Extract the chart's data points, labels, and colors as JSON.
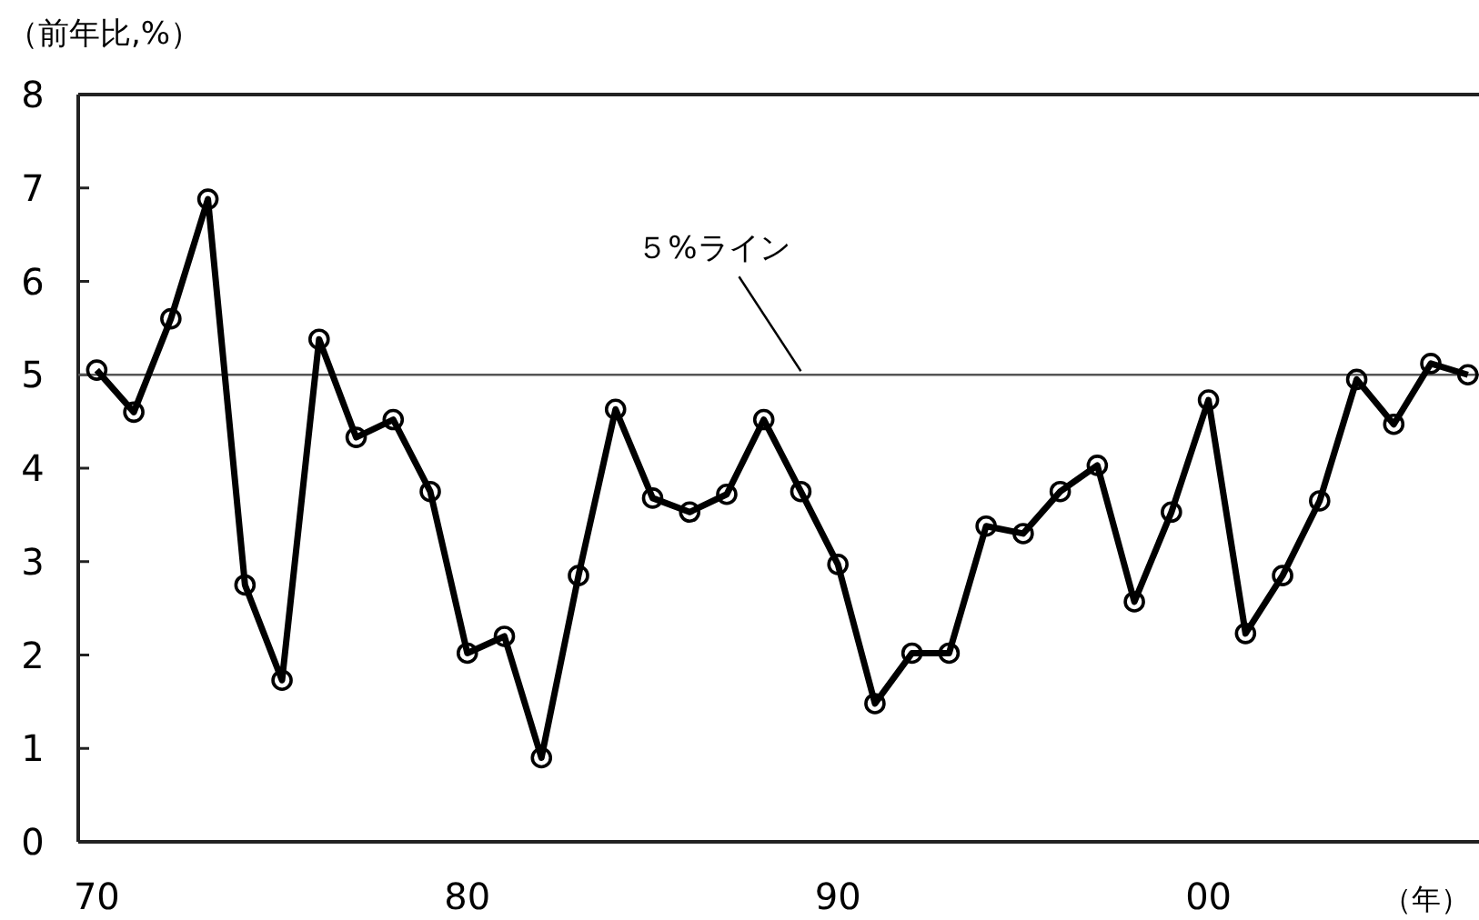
{
  "chart_data": {
    "type": "line",
    "ylabel": "（前年比,%）",
    "xlabel": "（年）",
    "x": [
      1970,
      1971,
      1972,
      1973,
      1974,
      1975,
      1976,
      1977,
      1978,
      1979,
      1980,
      1981,
      1982,
      1983,
      1984,
      1985,
      1986,
      1987,
      1988,
      1989,
      1990,
      1991,
      1992,
      1993,
      1994,
      1995,
      1996,
      1997,
      1998,
      1999,
      2000,
      2001,
      2002,
      2003,
      2004,
      2005,
      2006,
      2007
    ],
    "series": [
      {
        "color": "#000000",
        "values": [
          5.05,
          4.6,
          5.6,
          6.88,
          2.75,
          1.73,
          5.38,
          4.33,
          4.52,
          3.75,
          2.02,
          2.2,
          0.9,
          2.85,
          4.63,
          3.68,
          3.53,
          3.72,
          4.52,
          3.75,
          2.97,
          1.48,
          2.02,
          2.02,
          3.38,
          3.3,
          3.75,
          4.03,
          2.57,
          3.53,
          4.73,
          2.23,
          2.85,
          3.65,
          4.95,
          4.47,
          5.12,
          5.0
        ]
      }
    ],
    "marker": "circle",
    "line_style": "solid",
    "grid": false,
    "xlim": [
      1969.5,
      2007.3
    ],
    "xticks": [
      {
        "value": 1970,
        "label": "70"
      },
      {
        "value": 1980,
        "label": "80"
      },
      {
        "value": 1990,
        "label": "90"
      },
      {
        "value": 2000,
        "label": "00"
      }
    ],
    "ylim": [
      0,
      8
    ],
    "yticks": [
      0,
      1,
      2,
      3,
      4,
      5,
      6,
      7,
      8
    ],
    "ref_lines": [
      {
        "axis": "y",
        "value": 5,
        "color": "#555555"
      }
    ],
    "annotations": [
      {
        "text": "５%ライン",
        "x": 1989,
        "y": 5
      }
    ]
  }
}
